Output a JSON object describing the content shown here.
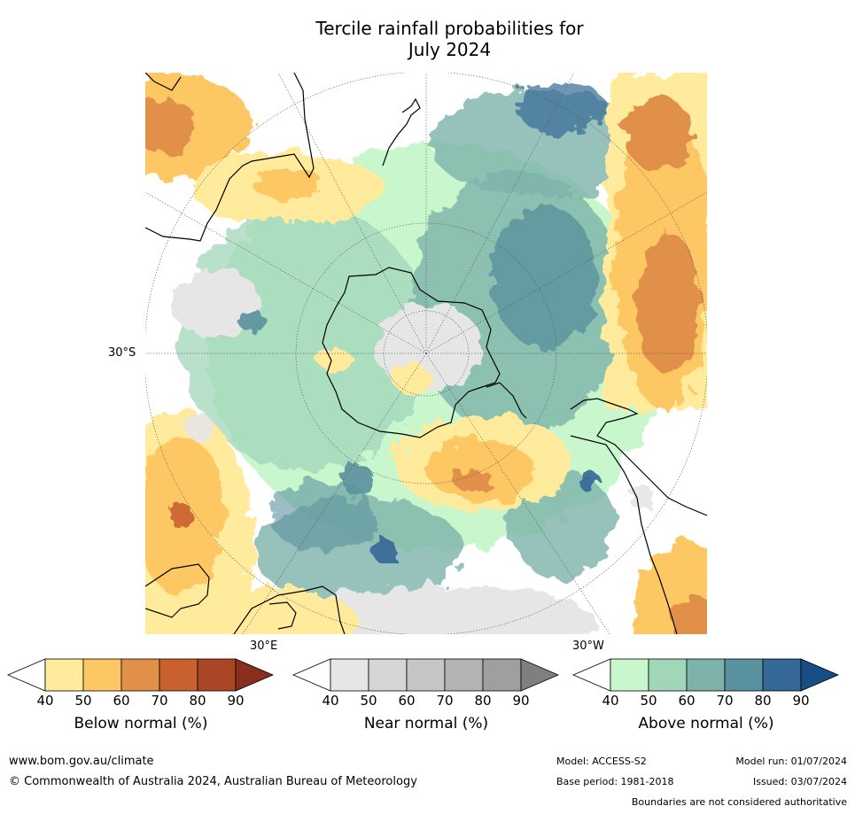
{
  "title_line1": "Tercile rainfall probabilities for",
  "title_line2": "July 2024",
  "map": {
    "lat_label": "30°S",
    "lon_label_east": "30°E",
    "lon_label_west": "30°W"
  },
  "colorbars": [
    {
      "name": "below",
      "title": "Below normal (%)",
      "ticks": [
        "40",
        "50",
        "60",
        "70",
        "80",
        "90"
      ],
      "colors": [
        "#ffffff",
        "#ffeb9b",
        "#fdc863",
        "#e1904a",
        "#c9612f",
        "#aa4526",
        "#8a2f1e"
      ]
    },
    {
      "name": "near",
      "title": "Near normal (%)",
      "ticks": [
        "40",
        "50",
        "60",
        "70",
        "80",
        "90"
      ],
      "colors": [
        "#ffffff",
        "#e6e6e6",
        "#d6d6d6",
        "#c6c6c6",
        "#b3b3b3",
        "#9f9f9f",
        "#7f7f7f"
      ]
    },
    {
      "name": "above",
      "title": "Above normal (%)",
      "ticks": [
        "40",
        "50",
        "60",
        "70",
        "80",
        "90"
      ],
      "colors": [
        "#ffffff",
        "#c8f7ce",
        "#a2d6b9",
        "#7db3aa",
        "#5a919e",
        "#356896",
        "#174e86"
      ]
    }
  ],
  "footer": {
    "url": "www.bom.gov.au/climate",
    "copyright": "© Commonwealth of Australia 2024, Australian Bureau of Meteorology",
    "model": "Model: ACCESS-S2",
    "model_run": "Model run: 01/07/2024",
    "base_period": "Base period: 1981-2018",
    "issued": "Issued: 03/07/2024",
    "boundaries": "Boundaries are not considered authoritative"
  }
}
